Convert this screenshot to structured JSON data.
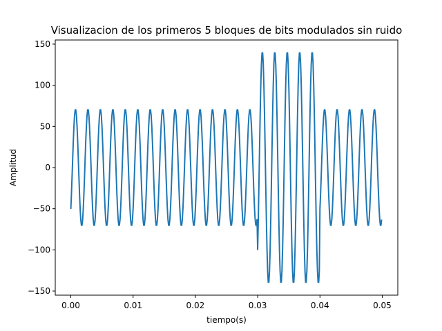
{
  "chart_data": {
    "type": "line",
    "title": "Visualizacion de los primeros 5 bloques de bits modulados sin ruido",
    "xlabel": "tiempo(s)",
    "ylabel": "Amplitud",
    "xlim": [
      -0.0025,
      0.0525
    ],
    "ylim": [
      -155,
      155
    ],
    "x_ticks": [
      0.0,
      0.01,
      0.02,
      0.03,
      0.04,
      0.05
    ],
    "x_tick_labels": [
      "0.00",
      "0.01",
      "0.02",
      "0.03",
      "0.04",
      "0.05"
    ],
    "y_ticks": [
      -150,
      -100,
      -50,
      0,
      50,
      100,
      150
    ],
    "y_tick_labels": [
      "−150",
      "−100",
      "−50",
      "0",
      "50",
      "100",
      "150"
    ],
    "grid": false,
    "series_color": "#1f77b4",
    "signal": {
      "x_start": 0.0,
      "x_end": 0.0499,
      "sample_step": 0.0001,
      "frequency_hz": 500,
      "phase_offset_deg": -45,
      "segments": [
        {
          "x_start": 0.0,
          "x_end": 0.03,
          "amplitude": 71
        },
        {
          "x_start": 0.03,
          "x_end": 0.04,
          "amplitude": 141
        },
        {
          "x_start": 0.04,
          "x_end": 0.0499,
          "amplitude": 71
        }
      ]
    }
  }
}
